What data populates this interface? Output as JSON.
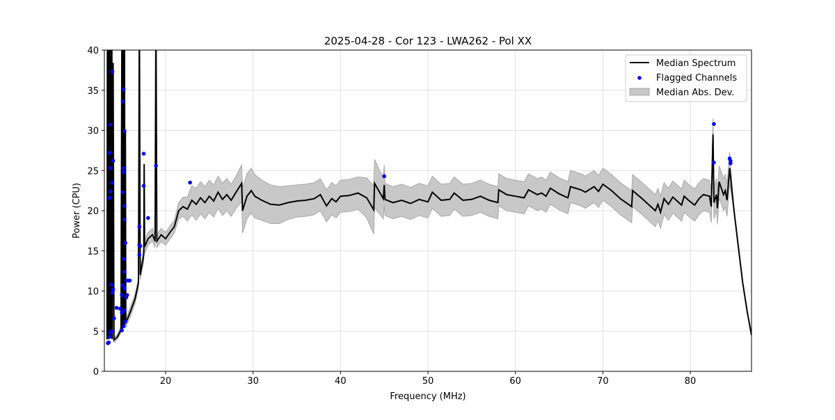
{
  "chart_data": {
    "type": "line",
    "title": "2025-04-28 - Cor 123 - LWA262 - Pol XX",
    "xlabel": "Frequency (MHz)",
    "ylabel": "Power (CPU)",
    "xlim": [
      13,
      87
    ],
    "ylim": [
      0,
      40
    ],
    "xticks": [
      20,
      30,
      40,
      50,
      60,
      70,
      80
    ],
    "yticks": [
      0,
      5,
      10,
      15,
      20,
      25,
      30,
      35,
      40
    ],
    "grid": true,
    "legend_position": "top-right",
    "legend": [
      "Median Spectrum",
      "Flagged Channels",
      "Median Abs. Dev."
    ],
    "colors": {
      "median": "#000000",
      "flagged": "#0000ff",
      "mad": "#c8c8c8"
    },
    "series": [
      {
        "name": "Median Spectrum",
        "columns": [
          "frequency",
          "power",
          "mad"
        ],
        "points": [
          [
            13.3,
            4,
            0.3
          ],
          [
            13.35,
            45,
            0
          ],
          [
            13.4,
            4,
            0
          ],
          [
            13.45,
            45,
            0
          ],
          [
            13.5,
            4,
            0
          ],
          [
            13.55,
            45,
            0
          ],
          [
            13.6,
            4.1,
            0
          ],
          [
            13.65,
            45,
            0
          ],
          [
            13.7,
            4.2,
            0
          ],
          [
            13.75,
            45,
            0
          ],
          [
            13.8,
            4.1,
            0
          ],
          [
            13.85,
            45,
            0
          ],
          [
            13.9,
            4,
            0
          ],
          [
            14.0,
            38.4,
            0
          ],
          [
            14.1,
            3.9,
            0.3
          ],
          [
            14.5,
            4.3,
            0.3
          ],
          [
            14.9,
            5.2,
            0.4
          ],
          [
            15.0,
            40,
            0
          ],
          [
            15.05,
            5.3,
            0
          ],
          [
            15.1,
            45,
            0
          ],
          [
            15.15,
            5.4,
            0
          ],
          [
            15.2,
            45,
            0
          ],
          [
            15.25,
            5.5,
            0
          ],
          [
            15.3,
            45,
            0
          ],
          [
            15.35,
            5.8,
            0
          ],
          [
            15.4,
            30,
            0
          ],
          [
            15.45,
            6,
            0.5
          ],
          [
            16,
            7.5,
            0.6
          ],
          [
            16.5,
            9,
            0.6
          ],
          [
            16.9,
            11,
            0.6
          ],
          [
            17.0,
            45,
            0
          ],
          [
            17.1,
            12,
            0.6
          ],
          [
            17.5,
            14.5,
            0.8
          ],
          [
            17.55,
            25.8,
            0
          ],
          [
            17.6,
            15.5,
            0.8
          ],
          [
            18,
            16.5,
            0.8
          ],
          [
            18.5,
            17,
            0.8
          ],
          [
            18.8,
            16.2,
            0.8
          ],
          [
            18.9,
            45,
            0
          ],
          [
            19,
            16.2,
            0.8
          ],
          [
            19.5,
            17,
            0.8
          ],
          [
            20,
            16.5,
            0.8
          ],
          [
            20.5,
            17.3,
            0.8
          ],
          [
            21,
            18,
            0.8
          ],
          [
            21.5,
            20,
            1
          ],
          [
            22,
            20.5,
            1.2
          ],
          [
            22.5,
            20.2,
            1.5
          ],
          [
            23,
            21.3,
            1.8
          ],
          [
            23.5,
            20.8,
            2
          ],
          [
            24,
            21.6,
            2
          ],
          [
            24.5,
            21,
            2
          ],
          [
            25,
            21.8,
            2
          ],
          [
            25.5,
            21.2,
            2
          ],
          [
            26,
            22.3,
            2
          ],
          [
            26.5,
            21.4,
            2
          ],
          [
            27,
            22,
            2
          ],
          [
            27.5,
            21.3,
            2
          ],
          [
            28,
            22.2,
            2
          ],
          [
            28.7,
            23.4,
            2.3
          ],
          [
            28.8,
            20,
            2.8
          ],
          [
            29.3,
            21.8,
            2.8
          ],
          [
            29.8,
            22.5,
            2.8
          ],
          [
            30.2,
            21.8,
            2.7
          ],
          [
            31,
            21.3,
            2.5
          ],
          [
            32,
            20.8,
            2.4
          ],
          [
            33,
            20.7,
            2.3
          ],
          [
            34,
            21,
            2.1
          ],
          [
            35,
            21.2,
            2
          ],
          [
            36,
            21.3,
            2
          ],
          [
            37,
            21.5,
            2
          ],
          [
            37.7,
            22,
            2
          ],
          [
            38.4,
            20.6,
            2
          ],
          [
            39,
            21.5,
            2
          ],
          [
            39.5,
            21.1,
            2
          ],
          [
            40,
            21.8,
            2
          ],
          [
            41,
            21.9,
            2
          ],
          [
            42,
            22.2,
            2
          ],
          [
            43,
            21.6,
            2.5
          ],
          [
            43.8,
            20.1,
            3
          ],
          [
            43.9,
            23.4,
            3
          ],
          [
            44.9,
            21.5,
            2.5
          ],
          [
            45,
            23.2,
            2.5
          ],
          [
            45.1,
            21.4,
            2
          ],
          [
            46,
            21,
            2
          ],
          [
            47,
            21.3,
            2
          ],
          [
            48,
            20.9,
            2
          ],
          [
            49,
            21.4,
            2
          ],
          [
            50,
            21.1,
            2
          ],
          [
            50.5,
            22.3,
            2
          ],
          [
            51.5,
            21.3,
            2
          ],
          [
            52.5,
            21.4,
            2
          ],
          [
            53,
            22.2,
            2
          ],
          [
            54,
            21.3,
            2
          ],
          [
            55,
            21.4,
            2
          ],
          [
            56,
            21.8,
            2
          ],
          [
            57,
            21.3,
            2
          ],
          [
            58,
            21,
            2
          ],
          [
            58.1,
            22.6,
            2
          ],
          [
            59,
            22,
            2
          ],
          [
            60,
            21.8,
            2
          ],
          [
            61,
            21.6,
            2
          ],
          [
            61.5,
            22.6,
            2
          ],
          [
            62.5,
            22,
            2
          ],
          [
            63,
            22.2,
            2
          ],
          [
            63.5,
            21.8,
            2
          ],
          [
            64,
            22.8,
            2
          ],
          [
            65,
            22.1,
            2
          ],
          [
            66,
            21.6,
            2
          ],
          [
            66.3,
            23,
            2
          ],
          [
            67.5,
            22.6,
            2
          ],
          [
            68,
            22.3,
            2
          ],
          [
            69,
            23,
            2
          ],
          [
            69.5,
            22.4,
            2
          ],
          [
            70,
            23.3,
            2
          ],
          [
            71,
            22.5,
            2
          ],
          [
            72,
            21.5,
            2
          ],
          [
            73.3,
            20.5,
            2
          ],
          [
            73.4,
            22.5,
            2
          ],
          [
            74.5,
            21.5,
            2
          ],
          [
            75.5,
            20.5,
            2
          ],
          [
            76,
            20,
            2
          ],
          [
            76.3,
            20.8,
            2
          ],
          [
            76.6,
            19.8,
            2
          ],
          [
            77,
            21.5,
            2
          ],
          [
            77.5,
            20.8,
            2
          ],
          [
            78,
            21.7,
            2
          ],
          [
            79,
            20.7,
            2
          ],
          [
            79.3,
            21.8,
            2
          ],
          [
            79.8,
            21.3,
            2
          ],
          [
            80.5,
            20.7,
            2
          ],
          [
            81,
            21.5,
            2
          ],
          [
            81.5,
            22,
            2
          ],
          [
            82.2,
            21.8,
            2
          ],
          [
            82.4,
            20.5,
            2
          ],
          [
            82.6,
            29.5,
            2
          ],
          [
            82.7,
            21,
            2
          ],
          [
            83,
            22,
            2
          ],
          [
            83.1,
            20.3,
            2
          ],
          [
            83.3,
            23.6,
            2
          ],
          [
            83.8,
            22,
            2
          ],
          [
            84,
            22.5,
            2
          ],
          [
            84.2,
            21.3,
            2
          ],
          [
            84.5,
            25.3,
            2
          ],
          [
            85,
            20,
            0
          ],
          [
            85.5,
            15.5,
            0
          ],
          [
            86,
            11,
            0
          ],
          [
            86.5,
            7.5,
            0
          ],
          [
            87,
            4.5,
            0
          ]
        ]
      },
      {
        "name": "Flagged Channels",
        "points": [
          [
            13.9,
            37.3
          ],
          [
            13.7,
            30.7
          ],
          [
            13.6,
            27.2
          ],
          [
            13.7,
            25.3
          ],
          [
            13.9,
            23.5
          ],
          [
            13.7,
            22.4
          ],
          [
            13.6,
            21.6
          ],
          [
            14.0,
            26.2
          ],
          [
            14.0,
            10.2
          ],
          [
            13.8,
            10.8
          ],
          [
            13.9,
            9.8
          ],
          [
            14.1,
            6.6
          ],
          [
            13.6,
            4.3
          ],
          [
            13.5,
            3.6
          ],
          [
            13.4,
            3.5
          ],
          [
            13.7,
            4.8
          ],
          [
            13.8,
            5.0
          ],
          [
            14.4,
            7.9
          ],
          [
            15.2,
            35.1
          ],
          [
            15.1,
            33.6
          ],
          [
            15.3,
            29.9
          ],
          [
            15.2,
            25.3
          ],
          [
            15.2,
            24.8
          ],
          [
            15.1,
            22.3
          ],
          [
            15.3,
            20.6
          ],
          [
            15.3,
            18.9
          ],
          [
            15.4,
            16.0
          ],
          [
            15.2,
            14.0
          ],
          [
            15.3,
            12.4
          ],
          [
            15.1,
            10.7
          ],
          [
            15.0,
            9.5
          ],
          [
            15.3,
            10.3
          ],
          [
            15.5,
            11.3
          ],
          [
            15.7,
            11.3
          ],
          [
            15.9,
            11.3
          ],
          [
            15.5,
            9.2
          ],
          [
            15.6,
            9.5
          ],
          [
            14.8,
            7.8
          ],
          [
            15.0,
            7.3
          ],
          [
            15.3,
            7.6
          ],
          [
            15.4,
            6.2
          ],
          [
            15.2,
            5.6
          ],
          [
            15.0,
            5.1
          ],
          [
            17.5,
            27.1
          ],
          [
            17.5,
            23.1
          ],
          [
            18.0,
            19.1
          ],
          [
            17.0,
            18.0
          ],
          [
            17.0,
            15.7
          ],
          [
            17.1,
            15.6
          ],
          [
            17.0,
            14.5
          ],
          [
            18.9,
            25.6
          ],
          [
            22.8,
            23.5
          ],
          [
            45.0,
            24.3
          ],
          [
            82.7,
            30.8
          ],
          [
            82.7,
            26.0
          ],
          [
            84.5,
            26.5
          ],
          [
            84.6,
            26.2
          ],
          [
            84.6,
            25.9
          ]
        ]
      }
    ]
  }
}
